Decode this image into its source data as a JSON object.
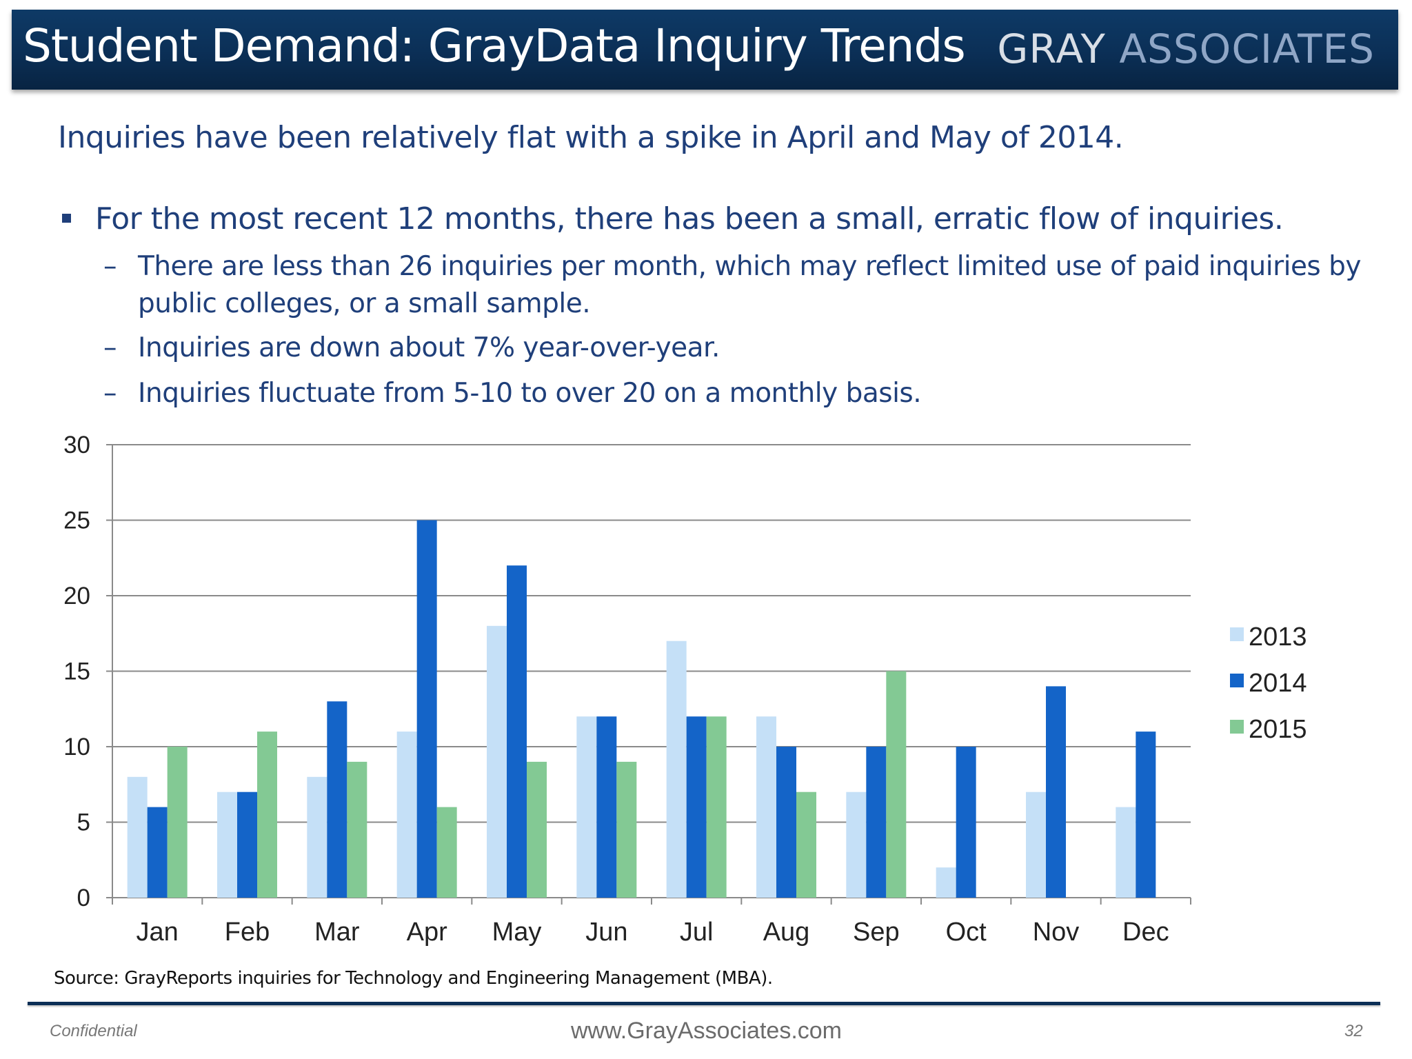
{
  "header": {
    "title": "Student Demand:  GrayData Inquiry Trends",
    "logo_gray": "GRAY",
    "logo_associates": "ASSOCIATES"
  },
  "subtitle": "Inquiries have been relatively flat with a spike in April and May of 2014.",
  "bullets": {
    "main": "For the most recent 12 months, there has been a small, erratic flow of inquiries.",
    "subs": [
      "There are less than 26 inquiries per month, which may reflect limited use of paid inquiries by public colleges, or a small sample.",
      "Inquiries are down about 7% year-over-year.",
      "Inquiries fluctuate from 5-10 to over 20 on a monthly basis."
    ],
    "dash": "–"
  },
  "chart_data": {
    "type": "bar",
    "title": "",
    "xlabel": "",
    "ylabel": "",
    "categories": [
      "Jan",
      "Feb",
      "Mar",
      "Apr",
      "May",
      "Jun",
      "Jul",
      "Aug",
      "Sep",
      "Oct",
      "Nov",
      "Dec"
    ],
    "series": [
      {
        "name": "2013",
        "color": "#c5e0f7",
        "values": [
          8,
          7,
          8,
          11,
          18,
          12,
          17,
          12,
          7,
          2,
          7,
          6
        ]
      },
      {
        "name": "2014",
        "color": "#1464c8",
        "values": [
          6,
          7,
          13,
          25,
          22,
          12,
          12,
          10,
          10,
          10,
          14,
          11
        ]
      },
      {
        "name": "2015",
        "color": "#83c994",
        "values": [
          10,
          11,
          9,
          6,
          9,
          9,
          12,
          7,
          15,
          null,
          null,
          null
        ]
      }
    ],
    "ylim": [
      0,
      30
    ],
    "yticks": [
      0,
      5,
      10,
      15,
      20,
      25,
      30
    ],
    "grid": true,
    "legend": "right"
  },
  "source": "Source:  GrayReports inquiries for Technology and Engineering Management (MBA).",
  "footer": {
    "confidential": "Confidential",
    "website": "www.GrayAssociates.com",
    "page": "32"
  }
}
